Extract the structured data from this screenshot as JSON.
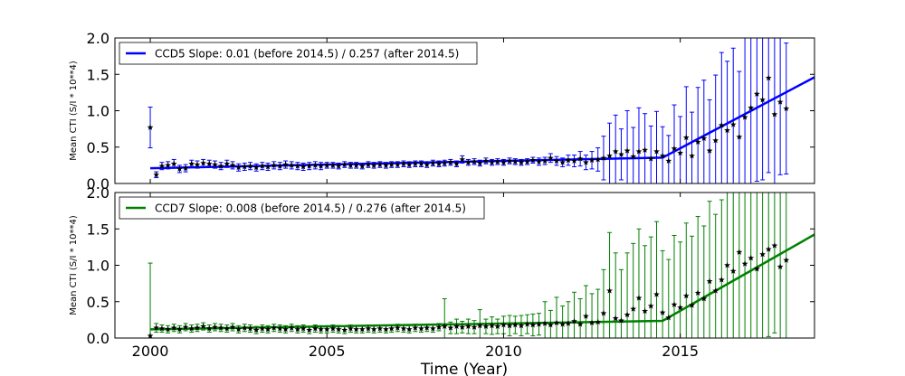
{
  "chart_data": [
    {
      "type": "scatter",
      "panel": "top",
      "color": "#0000ff",
      "legend": "CCD5 Slope: 0.01 (before 2014.5) / 0.257 (after 2014.5)",
      "legend_position": "top-left",
      "ylabel": "Mean CTI (S/I * 10**4)",
      "xlim": [
        1999,
        2018.8
      ],
      "ylim": [
        0,
        2.0
      ],
      "yticks": [
        "0.0",
        "0.5",
        "1.0",
        "1.5",
        "2.0"
      ],
      "fit": {
        "break_x": 2014.5,
        "y_start": 0.21,
        "slope_before": 0.01,
        "slope_after": 0.257
      },
      "series": [
        {
          "x": [
            2000.0,
            2000.17,
            2000.33,
            2000.5,
            2000.67,
            2000.83,
            2001.0,
            2001.17,
            2001.33,
            2001.5,
            2001.67,
            2001.83,
            2002.0,
            2002.17,
            2002.33,
            2002.5,
            2002.67,
            2002.83,
            2003.0,
            2003.17,
            2003.33,
            2003.5,
            2003.67,
            2003.83,
            2004.0,
            2004.17,
            2004.33,
            2004.5,
            2004.67,
            2004.83,
            2005.0,
            2005.17,
            2005.33,
            2005.5,
            2005.67,
            2005.83,
            2006.0,
            2006.17,
            2006.33,
            2006.5,
            2006.67,
            2006.83,
            2007.0,
            2007.17,
            2007.33,
            2007.5,
            2007.67,
            2007.83,
            2008.0,
            2008.17,
            2008.33,
            2008.5,
            2008.67,
            2008.83,
            2009.0,
            2009.17,
            2009.33,
            2009.5,
            2009.67,
            2009.83,
            2010.0,
            2010.17,
            2010.33,
            2010.5,
            2010.67,
            2010.83,
            2011.0,
            2011.17,
            2011.33,
            2011.5,
            2011.67,
            2011.83,
            2012.0,
            2012.17,
            2012.33,
            2012.5,
            2012.67,
            2012.83,
            2013.0,
            2013.17,
            2013.33,
            2013.5,
            2013.67,
            2013.83,
            2014.0,
            2014.17,
            2014.33,
            2014.5,
            2014.67,
            2014.83,
            2015.0,
            2015.17,
            2015.33,
            2015.5,
            2015.67,
            2015.83,
            2016.0,
            2016.17,
            2016.33,
            2016.5,
            2016.67,
            2016.83,
            2017.0,
            2017.17,
            2017.33,
            2017.5,
            2017.67,
            2017.83,
            2018.0
          ],
          "y": [
            0.77,
            0.12,
            0.24,
            0.25,
            0.27,
            0.2,
            0.21,
            0.27,
            0.26,
            0.28,
            0.27,
            0.26,
            0.24,
            0.27,
            0.25,
            0.22,
            0.23,
            0.24,
            0.22,
            0.24,
            0.23,
            0.25,
            0.24,
            0.26,
            0.25,
            0.24,
            0.23,
            0.24,
            0.25,
            0.24,
            0.25,
            0.25,
            0.24,
            0.26,
            0.25,
            0.25,
            0.24,
            0.26,
            0.25,
            0.26,
            0.25,
            0.26,
            0.26,
            0.27,
            0.26,
            0.27,
            0.27,
            0.26,
            0.28,
            0.27,
            0.28,
            0.29,
            0.27,
            0.33,
            0.29,
            0.3,
            0.28,
            0.31,
            0.29,
            0.3,
            0.29,
            0.31,
            0.3,
            0.29,
            0.3,
            0.32,
            0.3,
            0.31,
            0.35,
            0.31,
            0.29,
            0.32,
            0.31,
            0.34,
            0.29,
            0.32,
            0.33,
            0.35,
            0.38,
            0.44,
            0.4,
            0.45,
            0.37,
            0.44,
            0.46,
            0.34,
            0.44,
            0.38,
            0.31,
            0.48,
            0.42,
            0.63,
            0.38,
            0.57,
            0.62,
            0.45,
            0.59,
            0.8,
            0.73,
            0.81,
            0.64,
            0.91,
            1.04,
            1.23,
            1.15,
            1.45,
            0.95,
            1.12,
            1.03
          ],
          "err": [
            0.28,
            0.04,
            0.05,
            0.05,
            0.06,
            0.05,
            0.05,
            0.05,
            0.05,
            0.05,
            0.05,
            0.05,
            0.05,
            0.05,
            0.05,
            0.05,
            0.05,
            0.05,
            0.05,
            0.05,
            0.05,
            0.05,
            0.05,
            0.05,
            0.05,
            0.05,
            0.05,
            0.05,
            0.05,
            0.05,
            0.04,
            0.04,
            0.04,
            0.04,
            0.04,
            0.04,
            0.04,
            0.04,
            0.04,
            0.04,
            0.04,
            0.04,
            0.04,
            0.04,
            0.04,
            0.04,
            0.04,
            0.04,
            0.04,
            0.04,
            0.04,
            0.04,
            0.04,
            0.05,
            0.04,
            0.04,
            0.04,
            0.04,
            0.04,
            0.04,
            0.04,
            0.04,
            0.04,
            0.04,
            0.04,
            0.04,
            0.05,
            0.05,
            0.06,
            0.06,
            0.06,
            0.07,
            0.08,
            0.1,
            0.1,
            0.12,
            0.16,
            0.3,
            0.45,
            0.5,
            0.35,
            0.55,
            0.4,
            0.6,
            0.5,
            0.45,
            0.55,
            0.4,
            0.35,
            0.6,
            0.5,
            0.7,
            0.6,
            0.75,
            0.8,
            0.7,
            0.9,
            1.0,
            0.95,
            1.05,
            0.9,
            1.1,
            1.05,
            1.2,
            1.1,
            1.3,
            1.1,
            1.0,
            0.9
          ]
        }
      ]
    },
    {
      "type": "scatter",
      "panel": "bottom",
      "color": "#008000",
      "legend": "CCD7 Slope: 0.008 (before 2014.5) / 0.276 (after 2014.5)",
      "legend_position": "top-left",
      "ylabel": "Mean CTI (S/I * 10**4)",
      "xlabel": "Time (Year)",
      "xlim": [
        1999,
        2018.8
      ],
      "ylim": [
        0,
        2.0
      ],
      "yticks": [
        "0.0",
        "0.5",
        "1.0",
        "1.5",
        "2.0"
      ],
      "xticks": [
        "2000",
        "2005",
        "2010",
        "2015"
      ],
      "fit": {
        "break_x": 2014.5,
        "y_start": 0.12,
        "slope_before": 0.008,
        "slope_after": 0.276
      },
      "series": [
        {
          "x": [
            2000.0,
            2000.17,
            2000.33,
            2000.5,
            2000.67,
            2000.83,
            2001.0,
            2001.17,
            2001.33,
            2001.5,
            2001.67,
            2001.83,
            2002.0,
            2002.17,
            2002.33,
            2002.5,
            2002.67,
            2002.83,
            2003.0,
            2003.17,
            2003.33,
            2003.5,
            2003.67,
            2003.83,
            2004.0,
            2004.17,
            2004.33,
            2004.5,
            2004.67,
            2004.83,
            2005.0,
            2005.17,
            2005.33,
            2005.5,
            2005.67,
            2005.83,
            2006.0,
            2006.17,
            2006.33,
            2006.5,
            2006.67,
            2006.83,
            2007.0,
            2007.17,
            2007.33,
            2007.5,
            2007.67,
            2007.83,
            2008.0,
            2008.17,
            2008.33,
            2008.5,
            2008.67,
            2008.83,
            2009.0,
            2009.17,
            2009.33,
            2009.5,
            2009.67,
            2009.83,
            2010.0,
            2010.17,
            2010.33,
            2010.5,
            2010.67,
            2010.83,
            2011.0,
            2011.17,
            2011.33,
            2011.5,
            2011.67,
            2011.83,
            2012.0,
            2012.17,
            2012.33,
            2012.5,
            2012.67,
            2012.83,
            2013.0,
            2013.17,
            2013.33,
            2013.5,
            2013.67,
            2013.83,
            2014.0,
            2014.17,
            2014.33,
            2014.5,
            2014.67,
            2014.83,
            2015.0,
            2015.17,
            2015.33,
            2015.5,
            2015.67,
            2015.83,
            2016.0,
            2016.17,
            2016.33,
            2016.5,
            2016.67,
            2016.83,
            2017.0,
            2017.17,
            2017.33,
            2017.5,
            2017.67,
            2017.83,
            2018.0
          ],
          "y": [
            0.03,
            0.14,
            0.13,
            0.12,
            0.14,
            0.12,
            0.15,
            0.13,
            0.14,
            0.16,
            0.13,
            0.15,
            0.14,
            0.13,
            0.15,
            0.12,
            0.14,
            0.13,
            0.11,
            0.13,
            0.12,
            0.14,
            0.13,
            0.12,
            0.14,
            0.12,
            0.13,
            0.11,
            0.13,
            0.12,
            0.12,
            0.13,
            0.12,
            0.11,
            0.13,
            0.12,
            0.12,
            0.13,
            0.12,
            0.13,
            0.12,
            0.13,
            0.14,
            0.13,
            0.12,
            0.14,
            0.13,
            0.14,
            0.13,
            0.15,
            0.16,
            0.14,
            0.16,
            0.15,
            0.16,
            0.15,
            0.17,
            0.16,
            0.17,
            0.16,
            0.18,
            0.17,
            0.18,
            0.17,
            0.19,
            0.18,
            0.19,
            0.2,
            0.18,
            0.21,
            0.19,
            0.2,
            0.23,
            0.19,
            0.3,
            0.21,
            0.22,
            0.34,
            0.65,
            0.27,
            0.24,
            0.32,
            0.4,
            0.55,
            0.37,
            0.44,
            0.6,
            0.35,
            0.28,
            0.46,
            0.42,
            0.58,
            0.45,
            0.62,
            0.54,
            0.78,
            0.65,
            0.8,
            1.0,
            0.92,
            1.18,
            1.02,
            1.1,
            0.95,
            1.15,
            1.22,
            1.27,
            0.98,
            1.07
          ],
          "err": [
            1.0,
            0.06,
            0.05,
            0.05,
            0.05,
            0.05,
            0.05,
            0.05,
            0.05,
            0.05,
            0.05,
            0.05,
            0.05,
            0.05,
            0.05,
            0.05,
            0.05,
            0.05,
            0.05,
            0.05,
            0.05,
            0.05,
            0.05,
            0.05,
            0.05,
            0.05,
            0.05,
            0.05,
            0.05,
            0.05,
            0.05,
            0.05,
            0.05,
            0.05,
            0.05,
            0.05,
            0.05,
            0.05,
            0.05,
            0.05,
            0.05,
            0.05,
            0.05,
            0.05,
            0.05,
            0.05,
            0.05,
            0.05,
            0.05,
            0.05,
            0.38,
            0.08,
            0.1,
            0.08,
            0.1,
            0.09,
            0.22,
            0.1,
            0.12,
            0.1,
            0.12,
            0.14,
            0.12,
            0.14,
            0.13,
            0.15,
            0.15,
            0.3,
            0.2,
            0.35,
            0.25,
            0.3,
            0.4,
            0.35,
            0.42,
            0.4,
            0.45,
            0.6,
            0.8,
            0.9,
            0.7,
            0.85,
            0.9,
            0.95,
            0.9,
            0.95,
            1.0,
            0.85,
            0.8,
            0.95,
            0.9,
            1.0,
            0.95,
            1.05,
            1.0,
            1.1,
            1.05,
            1.1,
            1.2,
            1.1,
            1.2,
            1.15,
            1.2,
            1.1,
            1.15,
            1.2,
            1.2,
            1.1,
            1.1
          ]
        }
      ]
    }
  ]
}
